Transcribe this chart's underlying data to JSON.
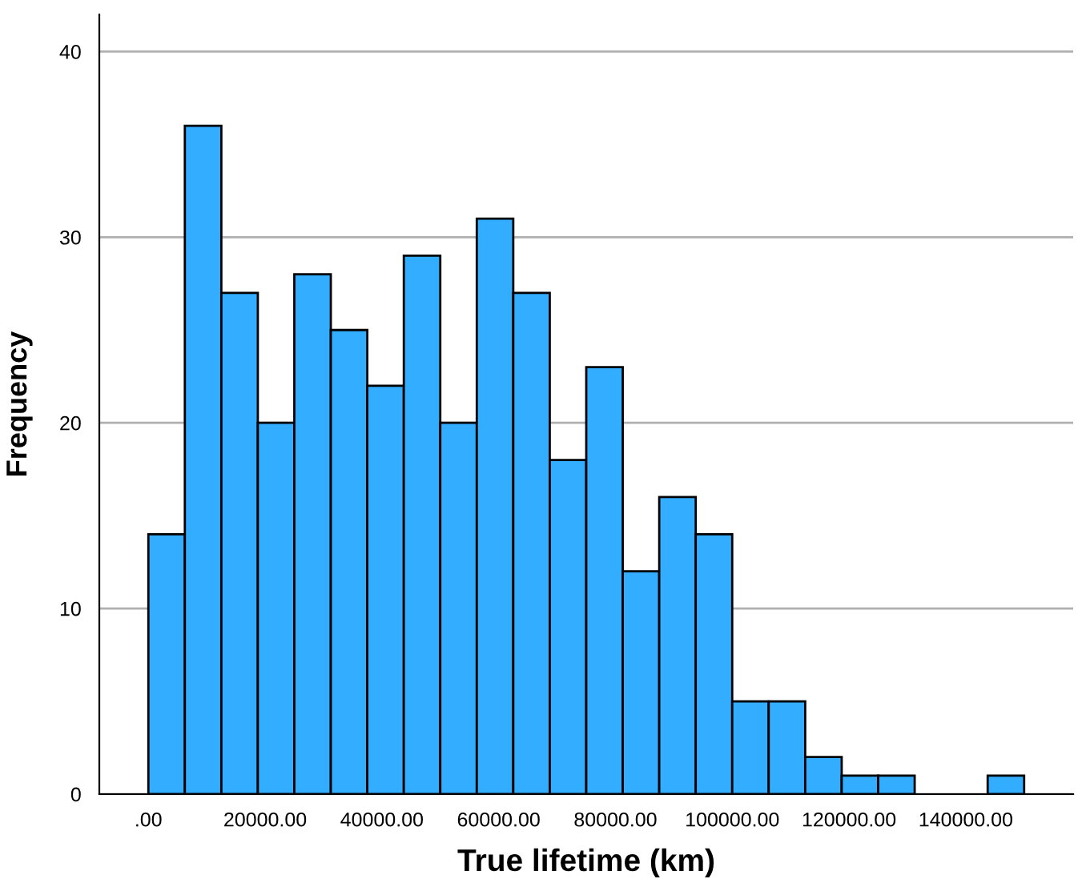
{
  "chart_data": {
    "type": "histogram",
    "xlabel": "True lifetime (km)",
    "ylabel": "Frequency",
    "bins": [
      0,
      6250,
      12500,
      18750,
      25000,
      31250,
      37500,
      43750,
      50000,
      56250,
      62500,
      68750,
      75000,
      81250,
      87500,
      93750,
      100000,
      106250,
      112500,
      118750,
      125000,
      131250,
      137500,
      143750,
      150000
    ],
    "values": [
      14,
      36,
      27,
      20,
      28,
      25,
      22,
      29,
      20,
      31,
      27,
      18,
      23,
      12,
      16,
      14,
      5,
      5,
      2,
      1,
      1,
      0,
      0,
      1
    ],
    "color": "#33adff",
    "xlim": [
      -8400,
      158400
    ],
    "ylim": [
      0,
      42
    ],
    "xticks": [
      {
        "value": 0,
        "label": ".00"
      },
      {
        "value": 20000,
        "label": "20000.00"
      },
      {
        "value": 40000,
        "label": "40000.00"
      },
      {
        "value": 60000,
        "label": "60000.00"
      },
      {
        "value": 80000,
        "label": "80000.00"
      },
      {
        "value": 100000,
        "label": "100000.00"
      },
      {
        "value": 120000,
        "label": "120000.00"
      },
      {
        "value": 140000,
        "label": "140000.00"
      }
    ],
    "yticks": [
      0,
      10,
      20,
      30,
      40
    ],
    "grid": "y"
  }
}
